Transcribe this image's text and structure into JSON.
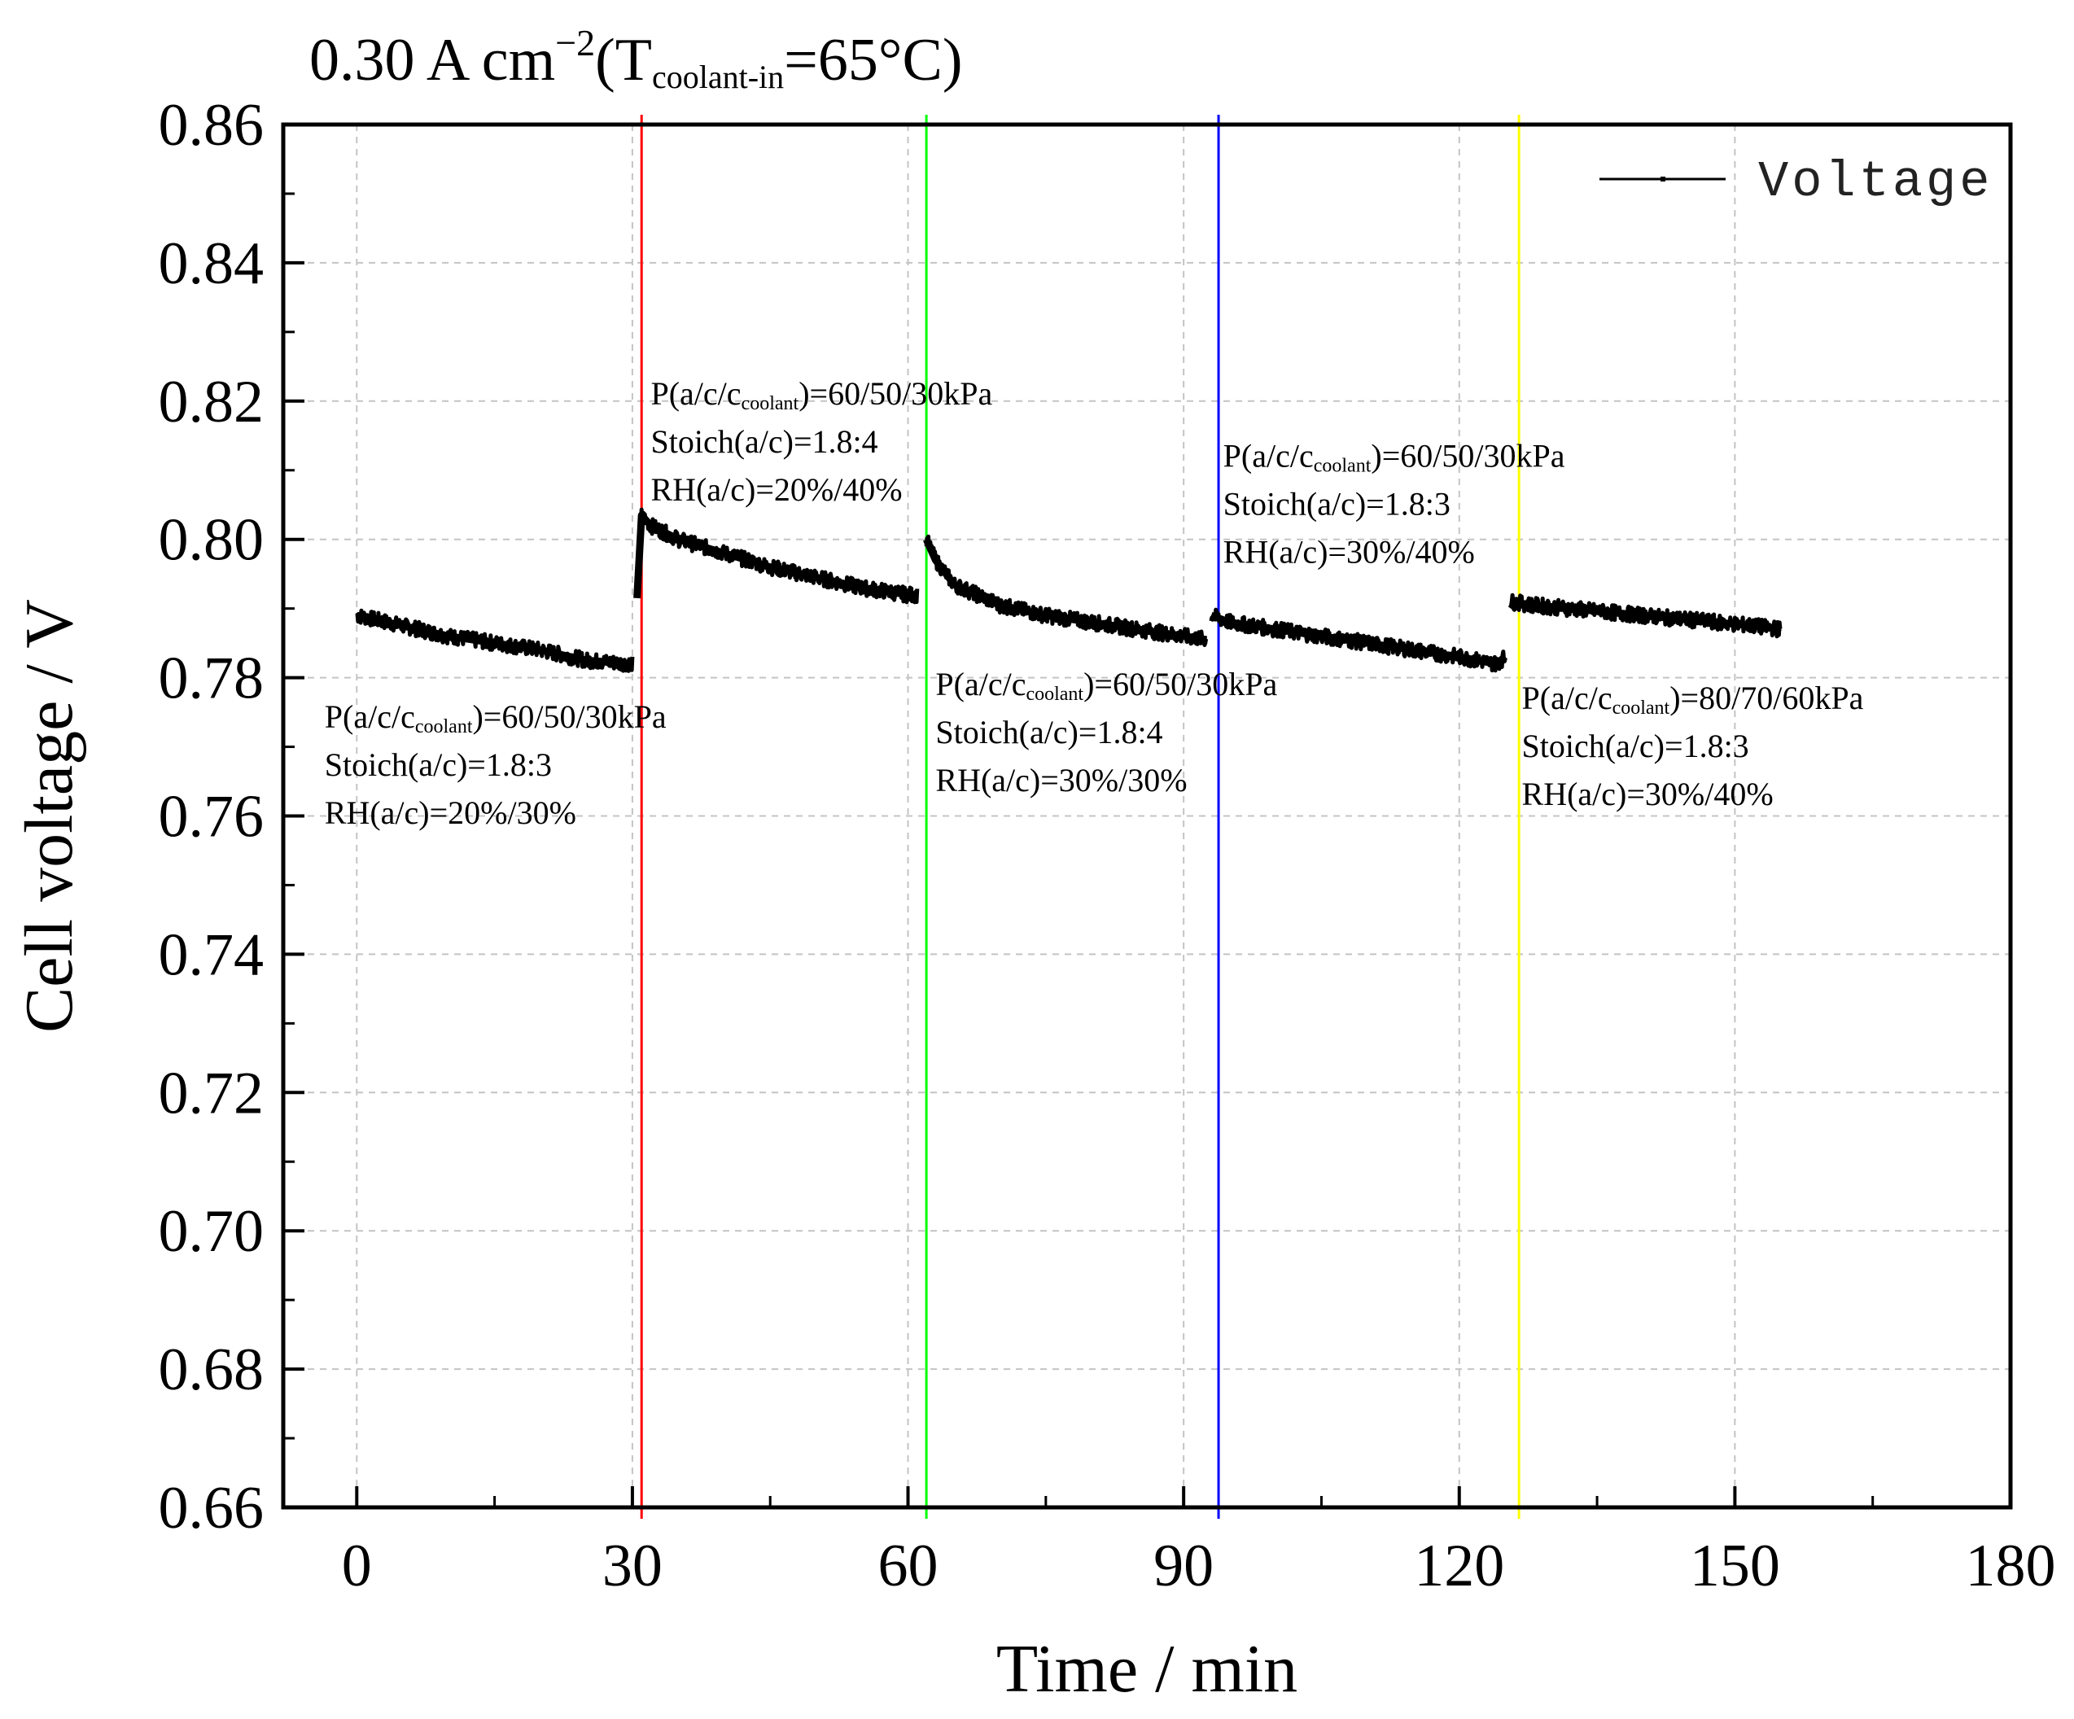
{
  "chart_data": {
    "type": "line",
    "title": {
      "prefix": "0.30 A cm",
      "superscript": "−2",
      "paren_open": "(T",
      "subscript": "coolant-in",
      "suffix": "=65°C)"
    },
    "xlabel": "Time / min",
    "ylabel": "Cell voltage / V",
    "xlim": [
      -8,
      180
    ],
    "ylim": [
      0.66,
      0.86
    ],
    "x_ticks": [
      "0",
      "30",
      "60",
      "90",
      "120",
      "150",
      "180"
    ],
    "y_ticks": [
      "0.66",
      "0.68",
      "0.70",
      "0.72",
      "0.74",
      "0.76",
      "0.78",
      "0.80",
      "0.82",
      "0.84",
      "0.86"
    ],
    "grid": true,
    "legend": {
      "position": "top-right",
      "entries": [
        "Voltage"
      ]
    },
    "series": [
      {
        "name": "Voltage",
        "color": "#000000",
        "segments": [
          {
            "x": [
              0,
              5,
              10,
              15,
              20,
              25,
              30
            ],
            "y": [
              0.789,
              0.7875,
              0.786,
              0.785,
              0.784,
              0.7825,
              0.782
            ]
          },
          {
            "x": [
              30.5,
              31,
              32,
              35,
              40,
              45,
              50,
              55,
              60,
              61
            ],
            "y": [
              0.7915,
              0.8035,
              0.802,
              0.8,
              0.798,
              0.796,
              0.7945,
              0.793,
              0.792,
              0.792
            ]
          },
          {
            "x": [
              62,
              63,
              65,
              70,
              75,
              80,
              85,
              90,
              92.5
            ],
            "y": [
              0.8,
              0.797,
              0.7935,
              0.7905,
              0.789,
              0.788,
              0.787,
              0.786,
              0.7855
            ]
          },
          {
            "x": [
              93,
              95,
              100,
              105,
              110,
              115,
              120,
              124,
              125
            ],
            "y": [
              0.789,
              0.788,
              0.787,
              0.786,
              0.785,
              0.784,
              0.783,
              0.782,
              0.783
            ]
          },
          {
            "x": [
              125.5,
              128,
              132,
              136,
              140,
              144,
              148,
              152,
              155
            ],
            "y": [
              0.791,
              0.7905,
              0.79,
              0.7895,
              0.789,
              0.7885,
              0.788,
              0.7875,
              0.787
            ]
          }
        ]
      }
    ],
    "markers": [
      {
        "x": 31,
        "color": "#ff0000"
      },
      {
        "x": 62,
        "color": "#00ff00"
      },
      {
        "x": 93.8,
        "color": "#0000ff"
      },
      {
        "x": 126.5,
        "color": "#ffff00"
      }
    ],
    "annotations": [
      {
        "x": -3.5,
        "y": 0.7728,
        "lines": [
          {
            "pre": "P(a/c/c",
            "sub": "coolant",
            "post": ")=60/50/30kPa"
          },
          {
            "pre": "Stoich(a/c)=1.8:3"
          },
          {
            "pre": "RH(a/c)=20%/30%"
          }
        ]
      },
      {
        "x": 32,
        "y": 0.8195,
        "lines": [
          {
            "pre": "P(a/c/c",
            "sub": "coolant",
            "post": ")=60/50/30kPa"
          },
          {
            "pre": "Stoich(a/c)=1.8:4"
          },
          {
            "pre": "RH(a/c)=20%/40%"
          }
        ]
      },
      {
        "x": 63,
        "y": 0.7775,
        "lines": [
          {
            "pre": "P(a/c/c",
            "sub": "coolant",
            "post": ")=60/50/30kPa"
          },
          {
            "pre": "Stoich(a/c)=1.8:4"
          },
          {
            "pre": "RH(a/c)=30%/30%"
          }
        ]
      },
      {
        "x": 94.3,
        "y": 0.8105,
        "lines": [
          {
            "pre": "P(a/c/c",
            "sub": "coolant",
            "post": ")=60/50/30kPa"
          },
          {
            "pre": "Stoich(a/c)=1.8:3"
          },
          {
            "pre": "RH(a/c)=30%/40%"
          }
        ]
      },
      {
        "x": 126.8,
        "y": 0.7755,
        "lines": [
          {
            "pre": "P(a/c/c",
            "sub": "coolant",
            "post": ")=80/70/60kPa"
          },
          {
            "pre": "Stoich(a/c)=1.8:3"
          },
          {
            "pre": "RH(a/c)=30%/40%"
          }
        ]
      }
    ]
  }
}
